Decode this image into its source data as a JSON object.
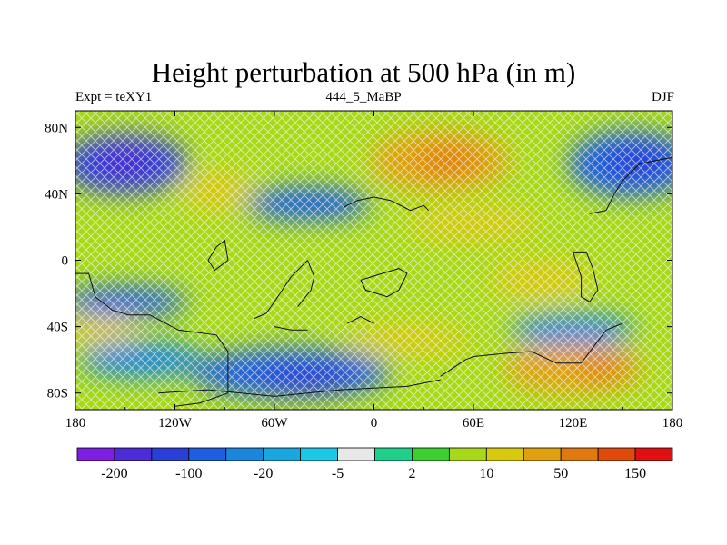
{
  "title": "Height perturbation at 500 hPa (in m)",
  "subtitle_left": "Expt = teXY1",
  "subtitle_center": "444_5_MaBP",
  "subtitle_right": "DJF",
  "x_ticks": [
    {
      "lon": -180,
      "label": "180"
    },
    {
      "lon": -120,
      "label": "120W"
    },
    {
      "lon": -60,
      "label": "60W"
    },
    {
      "lon": 0,
      "label": "0"
    },
    {
      "lon": 60,
      "label": "60E"
    },
    {
      "lon": 120,
      "label": "120E"
    },
    {
      "lon": 180,
      "label": "180"
    }
  ],
  "y_ticks": [
    {
      "lat": 80,
      "label": "80N"
    },
    {
      "lat": 40,
      "label": "40N"
    },
    {
      "lat": 0,
      "label": "0"
    },
    {
      "lat": -40,
      "label": "40S"
    },
    {
      "lat": -80,
      "label": "80S"
    }
  ],
  "lon_range": [
    -180,
    180
  ],
  "lat_range": [
    -90,
    90
  ],
  "colorbar": {
    "colors": [
      "#7b1fe0",
      "#4b2cd6",
      "#2a3fd8",
      "#1f5ee0",
      "#1a86dc",
      "#1aa6e0",
      "#1cc8e6",
      "#e8e8e8",
      "#20d08a",
      "#3ccf30",
      "#a8d81a",
      "#d8c80e",
      "#e0a010",
      "#e07a10",
      "#e04a0a",
      "#e01010"
    ],
    "labels": [
      {
        "boundary": 1,
        "text": "-200"
      },
      {
        "boundary": 3,
        "text": "-100"
      },
      {
        "boundary": 5,
        "text": "-20"
      },
      {
        "boundary": 7,
        "text": "-5"
      },
      {
        "boundary": 9,
        "text": "2"
      },
      {
        "boundary": 11,
        "text": "10"
      },
      {
        "boundary": 13,
        "text": "50"
      },
      {
        "boundary": 15,
        "text": "150"
      }
    ]
  },
  "blobs": [
    {
      "lon": -150,
      "lat": 58,
      "rlon": 38,
      "rlat": 18,
      "color": "#2a3fd8"
    },
    {
      "lon": -150,
      "lat": 60,
      "rlon": 20,
      "rlat": 9,
      "color": "#4b2cd6"
    },
    {
      "lon": -95,
      "lat": 42,
      "rlon": 22,
      "rlat": 12,
      "color": "#d8c80e"
    },
    {
      "lon": -40,
      "lat": 34,
      "rlon": 38,
      "rlat": 10,
      "color": "#1f5ee0"
    },
    {
      "lon": 40,
      "lat": 60,
      "rlon": 42,
      "rlat": 18,
      "color": "#e0a010"
    },
    {
      "lon": 45,
      "lat": 60,
      "rlon": 20,
      "rlat": 8,
      "color": "#e07a10"
    },
    {
      "lon": 155,
      "lat": 58,
      "rlon": 38,
      "rlat": 20,
      "color": "#1f5ee0"
    },
    {
      "lon": 160,
      "lat": 60,
      "rlon": 20,
      "rlat": 10,
      "color": "#2a3fd8"
    },
    {
      "lon": 60,
      "lat": 22,
      "rlon": 40,
      "rlat": 10,
      "color": "#d8c80e"
    },
    {
      "lon": -150,
      "lat": -25,
      "rlon": 38,
      "rlat": 9,
      "color": "#1f5ee0"
    },
    {
      "lon": -165,
      "lat": -42,
      "rlon": 22,
      "rlat": 9,
      "color": "#d8c80e"
    },
    {
      "lon": -140,
      "lat": -60,
      "rlon": 38,
      "rlat": 11,
      "color": "#1a86dc"
    },
    {
      "lon": -50,
      "lat": -68,
      "rlon": 60,
      "rlat": 15,
      "color": "#1f5ee0"
    },
    {
      "lon": -40,
      "lat": -72,
      "rlon": 30,
      "rlat": 8,
      "color": "#2a3fd8"
    },
    {
      "lon": 20,
      "lat": -48,
      "rlon": 38,
      "rlat": 9,
      "color": "#d8c80e"
    },
    {
      "lon": 120,
      "lat": -42,
      "rlon": 38,
      "rlat": 10,
      "color": "#1a86dc"
    },
    {
      "lon": 120,
      "lat": -65,
      "rlon": 42,
      "rlat": 15,
      "color": "#e0a010"
    },
    {
      "lon": 138,
      "lat": -65,
      "rlon": 14,
      "rlat": 7,
      "color": "#e07a10"
    },
    {
      "lon": 100,
      "lat": -12,
      "rlon": 30,
      "rlat": 12,
      "color": "#d8c80e"
    }
  ],
  "coastlines": [
    [
      [
        -180,
        -8
      ],
      [
        -172,
        -8
      ],
      [
        -168,
        -22
      ],
      [
        -158,
        -30
      ],
      [
        -148,
        -33
      ],
      [
        -135,
        -33
      ],
      [
        -118,
        -42
      ],
      [
        -95,
        -45
      ],
      [
        -88,
        -55
      ],
      [
        -88,
        -80
      ],
      [
        -105,
        -86
      ],
      [
        -120,
        -88
      ]
    ],
    [
      [
        -40,
        0
      ],
      [
        -50,
        -10
      ],
      [
        -60,
        -25
      ],
      [
        -65,
        -32
      ],
      [
        -72,
        -35
      ]
    ],
    [
      [
        -40,
        0
      ],
      [
        -36,
        -10
      ],
      [
        -38,
        -18
      ],
      [
        -46,
        -28
      ]
    ],
    [
      [
        -18,
        32
      ],
      [
        -10,
        36
      ],
      [
        0,
        38
      ],
      [
        10,
        36
      ],
      [
        22,
        30
      ],
      [
        30,
        33
      ],
      [
        33,
        30
      ]
    ],
    [
      [
        -8,
        -12
      ],
      [
        -5,
        -18
      ],
      [
        8,
        -22
      ],
      [
        15,
        -18
      ],
      [
        20,
        -8
      ],
      [
        15,
        -5
      ],
      [
        5,
        -8
      ],
      [
        -8,
        -12
      ]
    ],
    [
      [
        -16,
        -38
      ],
      [
        -8,
        -34
      ],
      [
        0,
        -38
      ]
    ],
    [
      [
        -60,
        -40
      ],
      [
        -50,
        -42
      ],
      [
        -40,
        -42
      ]
    ],
    [
      [
        -100,
        0
      ],
      [
        -95,
        8
      ],
      [
        -90,
        12
      ],
      [
        -88,
        0
      ],
      [
        -96,
        -6
      ],
      [
        -100,
        0
      ]
    ],
    [
      [
        40,
        -70
      ],
      [
        55,
        -60
      ],
      [
        60,
        -58
      ],
      [
        80,
        -56
      ],
      [
        95,
        -55
      ],
      [
        110,
        -62
      ],
      [
        125,
        -62
      ],
      [
        140,
        -42
      ],
      [
        150,
        -38
      ]
    ],
    [
      [
        120,
        5
      ],
      [
        125,
        -10
      ],
      [
        125,
        -22
      ],
      [
        130,
        -25
      ],
      [
        135,
        -18
      ],
      [
        132,
        -5
      ],
      [
        128,
        5
      ],
      [
        120,
        5
      ]
    ],
    [
      [
        130,
        28
      ],
      [
        140,
        30
      ],
      [
        145,
        40
      ],
      [
        150,
        48
      ],
      [
        160,
        58
      ],
      [
        170,
        60
      ],
      [
        180,
        62
      ]
    ],
    [
      [
        -130,
        -80
      ],
      [
        -100,
        -78
      ],
      [
        -60,
        -82
      ],
      [
        -20,
        -78
      ],
      [
        20,
        -76
      ],
      [
        40,
        -72
      ]
    ]
  ]
}
